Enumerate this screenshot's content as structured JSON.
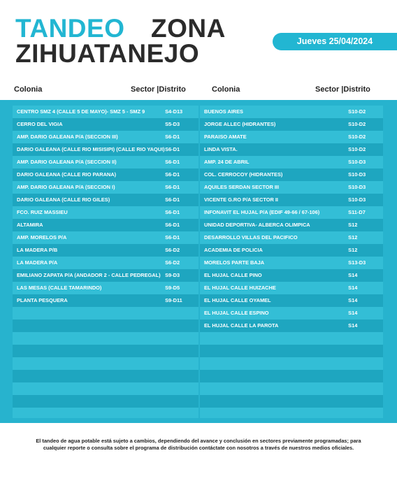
{
  "header": {
    "title_1": "TANDEO",
    "title_2": "ZONA",
    "title_3": "ZIHUATANEJO",
    "date": "Jueves 25/04/2024"
  },
  "tables": [
    {
      "columns": [
        "Colonia",
        "Sector |Distrito"
      ],
      "rows": [
        [
          "CENTRO SMZ 4 (CALLE 5 DE MAYO)- SMZ 5 - SMZ 9",
          "S4-D13"
        ],
        [
          "CERRO DEL VIGIA",
          "S5-D3"
        ],
        [
          "AMP. DARIO GALEANA P/A (SECCION III)",
          "S6-D1"
        ],
        [
          "DARIO GALEANA (CALLE RIO MISISIPI) (CALLE RIO YAQUI)",
          "S6-D1"
        ],
        [
          "AMP. DARIO GALEANA P/A (SECCION II)",
          "S6-D1"
        ],
        [
          "DARIO GALEANA (CALLE RIO PARANA)",
          "S6-D1"
        ],
        [
          "AMP. DARIO GALEANA P/A (SECCION I)",
          "S6-D1"
        ],
        [
          "DARIO GALEANA (CALLE RIO GILES)",
          "S6-D1"
        ],
        [
          "FCO. RUIZ MASSIEU",
          "S6-D1"
        ],
        [
          "ALTAMIRA",
          "S6-D1"
        ],
        [
          "AMP. MORELOS P/A",
          "S6-D1"
        ],
        [
          "LA MADERA P/B",
          "S6-D2"
        ],
        [
          "LA MADERA P/A",
          "S6-D2"
        ],
        [
          "EMILIANO ZAPATA P/A (ANDADOR 2 - CALLE PEDREGAL)",
          "S9-D3"
        ],
        [
          "LAS MESAS (CALLE TAMARINDO)",
          "S9-D5"
        ],
        [
          "PLANTA PESQUERA",
          "S9-D11"
        ]
      ]
    },
    {
      "columns": [
        "Colonia",
        "Sector |Distrito"
      ],
      "rows": [
        [
          "BUENOS AIRES",
          "S10-D2"
        ],
        [
          "JORGE ALLEC (HIDRANTES)",
          "S10-D2"
        ],
        [
          "PARAISO AMATE",
          "S10-D2"
        ],
        [
          "LINDA VISTA.",
          "S10-D2"
        ],
        [
          "AMP. 24 DE ABRIL",
          "S10-D3"
        ],
        [
          "COL. CERROCOY (HIDRANTES)",
          "S10-D3"
        ],
        [
          "AQUILES SERDAN SECTOR III",
          "S10-D3"
        ],
        [
          "VICENTE G.RO P/A SECTOR II",
          "S10-D3"
        ],
        [
          "INFONAVIT EL HUJAL P/A (EDIF 49-66 / 67-106)",
          "S11-D7"
        ],
        [
          "UNIDAD DEPORTIVA- ALBERCA OLIMPICA",
          "S12"
        ],
        [
          "DESARROLLO VILLAS DEL PACIFICO",
          "S12"
        ],
        [
          "ACADEMIA DE POLICIA",
          "S12"
        ],
        [
          "MORELOS PARTE BAJA",
          "S13-D3"
        ],
        [
          "EL HUJAL CALLE PINO",
          "S14"
        ],
        [
          "EL HUJAL CALLE HUIZACHE",
          "S14"
        ],
        [
          "EL HUJAL CALLE OYAMEL",
          "S14"
        ],
        [
          "EL HUJAL CALLE ESPINO",
          "S14"
        ],
        [
          "EL HUJAL CALLE LA PAROTA",
          "S14"
        ]
      ]
    }
  ],
  "footer": "El tandeo de agua potable está sujeto a cambios, dependiendo del avance y conclusión en sectores previamente programadas; para cualquier reporte o consulta sobre el programa de distribución contáctate con nosotros a través de nuestros medios oficiales."
}
